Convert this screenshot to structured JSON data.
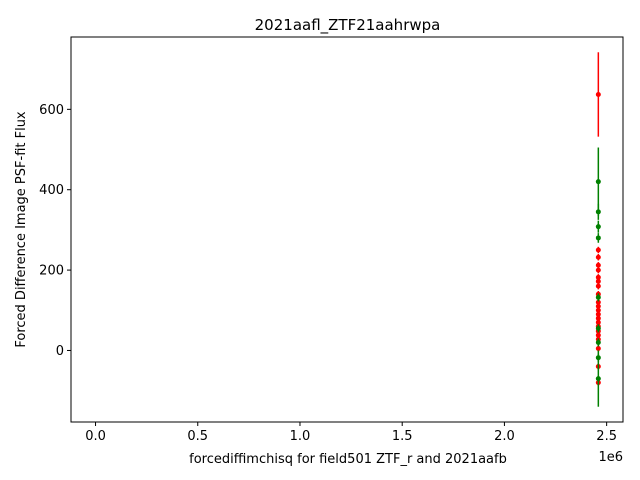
{
  "chart_data": {
    "type": "scatter",
    "title": "2021aafl_ZTF21aahrwpa",
    "xlabel": "forcediffimchisq for field501 ZTF_r and 2021aafb",
    "ylabel": "Forced Difference Image PSF-fit Flux",
    "x_offset_label": "1e6",
    "xlim": [
      -120000,
      2580000
    ],
    "ylim": [
      -178,
      780
    ],
    "xticks": [
      0,
      500000,
      1000000,
      1500000,
      2000000,
      2500000
    ],
    "xtick_labels": [
      "0.0",
      "0.5",
      "1.0",
      "1.5",
      "2.0",
      "2.5"
    ],
    "yticks": [
      0,
      200,
      400,
      600
    ],
    "ytick_labels": [
      "0",
      "200",
      "400",
      "600"
    ],
    "grid": false,
    "legend": "none",
    "series": [
      {
        "color": "#ff0000",
        "points": [
          {
            "x": 2459350,
            "y": 637,
            "err": 105
          },
          {
            "x": 2459350,
            "y": 250,
            "err": 8
          },
          {
            "x": 2459350,
            "y": 232,
            "err": 8
          },
          {
            "x": 2459350,
            "y": 212,
            "err": 8
          },
          {
            "x": 2459350,
            "y": 200,
            "err": 8
          },
          {
            "x": 2459350,
            "y": 182,
            "err": 8
          },
          {
            "x": 2459350,
            "y": 172,
            "err": 8
          },
          {
            "x": 2459350,
            "y": 160,
            "err": 8
          },
          {
            "x": 2459350,
            "y": 140,
            "err": 8
          },
          {
            "x": 2459350,
            "y": 120,
            "err": 8
          },
          {
            "x": 2459350,
            "y": 110,
            "err": 8
          },
          {
            "x": 2459350,
            "y": 100,
            "err": 8
          },
          {
            "x": 2459350,
            "y": 90,
            "err": 8
          },
          {
            "x": 2459350,
            "y": 80,
            "err": 8
          },
          {
            "x": 2459350,
            "y": 70,
            "err": 8
          },
          {
            "x": 2459350,
            "y": 60,
            "err": 8
          },
          {
            "x": 2459350,
            "y": 48,
            "err": 8
          },
          {
            "x": 2459350,
            "y": 38,
            "err": 8
          },
          {
            "x": 2459350,
            "y": 28,
            "err": 8
          },
          {
            "x": 2459350,
            "y": 5,
            "err": 8
          },
          {
            "x": 2459350,
            "y": -40,
            "err": 8
          },
          {
            "x": 2459350,
            "y": -80,
            "err": 8
          }
        ]
      },
      {
        "color": "#008000",
        "points": [
          {
            "x": 2459350,
            "y": 420,
            "err": 85
          },
          {
            "x": 2459350,
            "y": 345,
            "err": 20
          },
          {
            "x": 2459350,
            "y": 308,
            "err": 15
          },
          {
            "x": 2459350,
            "y": 280,
            "err": 12
          },
          {
            "x": 2459350,
            "y": 132,
            "err": 10
          },
          {
            "x": 2459350,
            "y": 55,
            "err": 10
          },
          {
            "x": 2459350,
            "y": 20,
            "err": 10
          },
          {
            "x": 2459350,
            "y": -18,
            "err": 10
          },
          {
            "x": 2459350,
            "y": -70,
            "err": 70
          }
        ]
      }
    ]
  }
}
